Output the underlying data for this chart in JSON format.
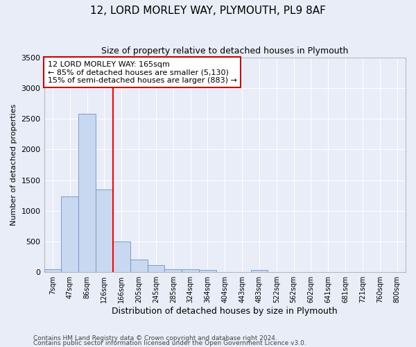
{
  "title": "12, LORD MORLEY WAY, PLYMOUTH, PL9 8AF",
  "subtitle": "Size of property relative to detached houses in Plymouth",
  "xlabel": "Distribution of detached houses by size in Plymouth",
  "ylabel": "Number of detached properties",
  "footer_line1": "Contains HM Land Registry data © Crown copyright and database right 2024.",
  "footer_line2": "Contains public sector information licensed under the Open Government Licence v3.0.",
  "categories": [
    "7sqm",
    "47sqm",
    "86sqm",
    "126sqm",
    "166sqm",
    "205sqm",
    "245sqm",
    "285sqm",
    "324sqm",
    "364sqm",
    "404sqm",
    "443sqm",
    "483sqm",
    "522sqm",
    "562sqm",
    "602sqm",
    "641sqm",
    "681sqm",
    "721sqm",
    "760sqm",
    "800sqm"
  ],
  "values": [
    50,
    1230,
    2580,
    1350,
    500,
    200,
    110,
    50,
    50,
    30,
    5,
    2,
    30,
    0,
    0,
    0,
    0,
    0,
    0,
    0,
    0
  ],
  "bar_color": "#c8d8f0",
  "bar_edge_color": "#7090c0",
  "red_line_index": 4,
  "ylim": [
    0,
    3500
  ],
  "yticks": [
    0,
    500,
    1000,
    1500,
    2000,
    2500,
    3000,
    3500
  ],
  "annotation_line1": "12 LORD MORLEY WAY: 165sqm",
  "annotation_line2": "← 85% of detached houses are smaller (5,130)",
  "annotation_line3": "15% of semi-detached houses are larger (883) →",
  "annotation_box_color": "#ffffff",
  "annotation_box_edge": "#cc0000",
  "background_color": "#e8edf8",
  "grid_color": "#ffffff",
  "title_fontsize": 11,
  "subtitle_fontsize": 9,
  "ylabel_fontsize": 8,
  "xlabel_fontsize": 9,
  "tick_fontsize": 8,
  "xtick_fontsize": 7,
  "footer_fontsize": 6.5
}
